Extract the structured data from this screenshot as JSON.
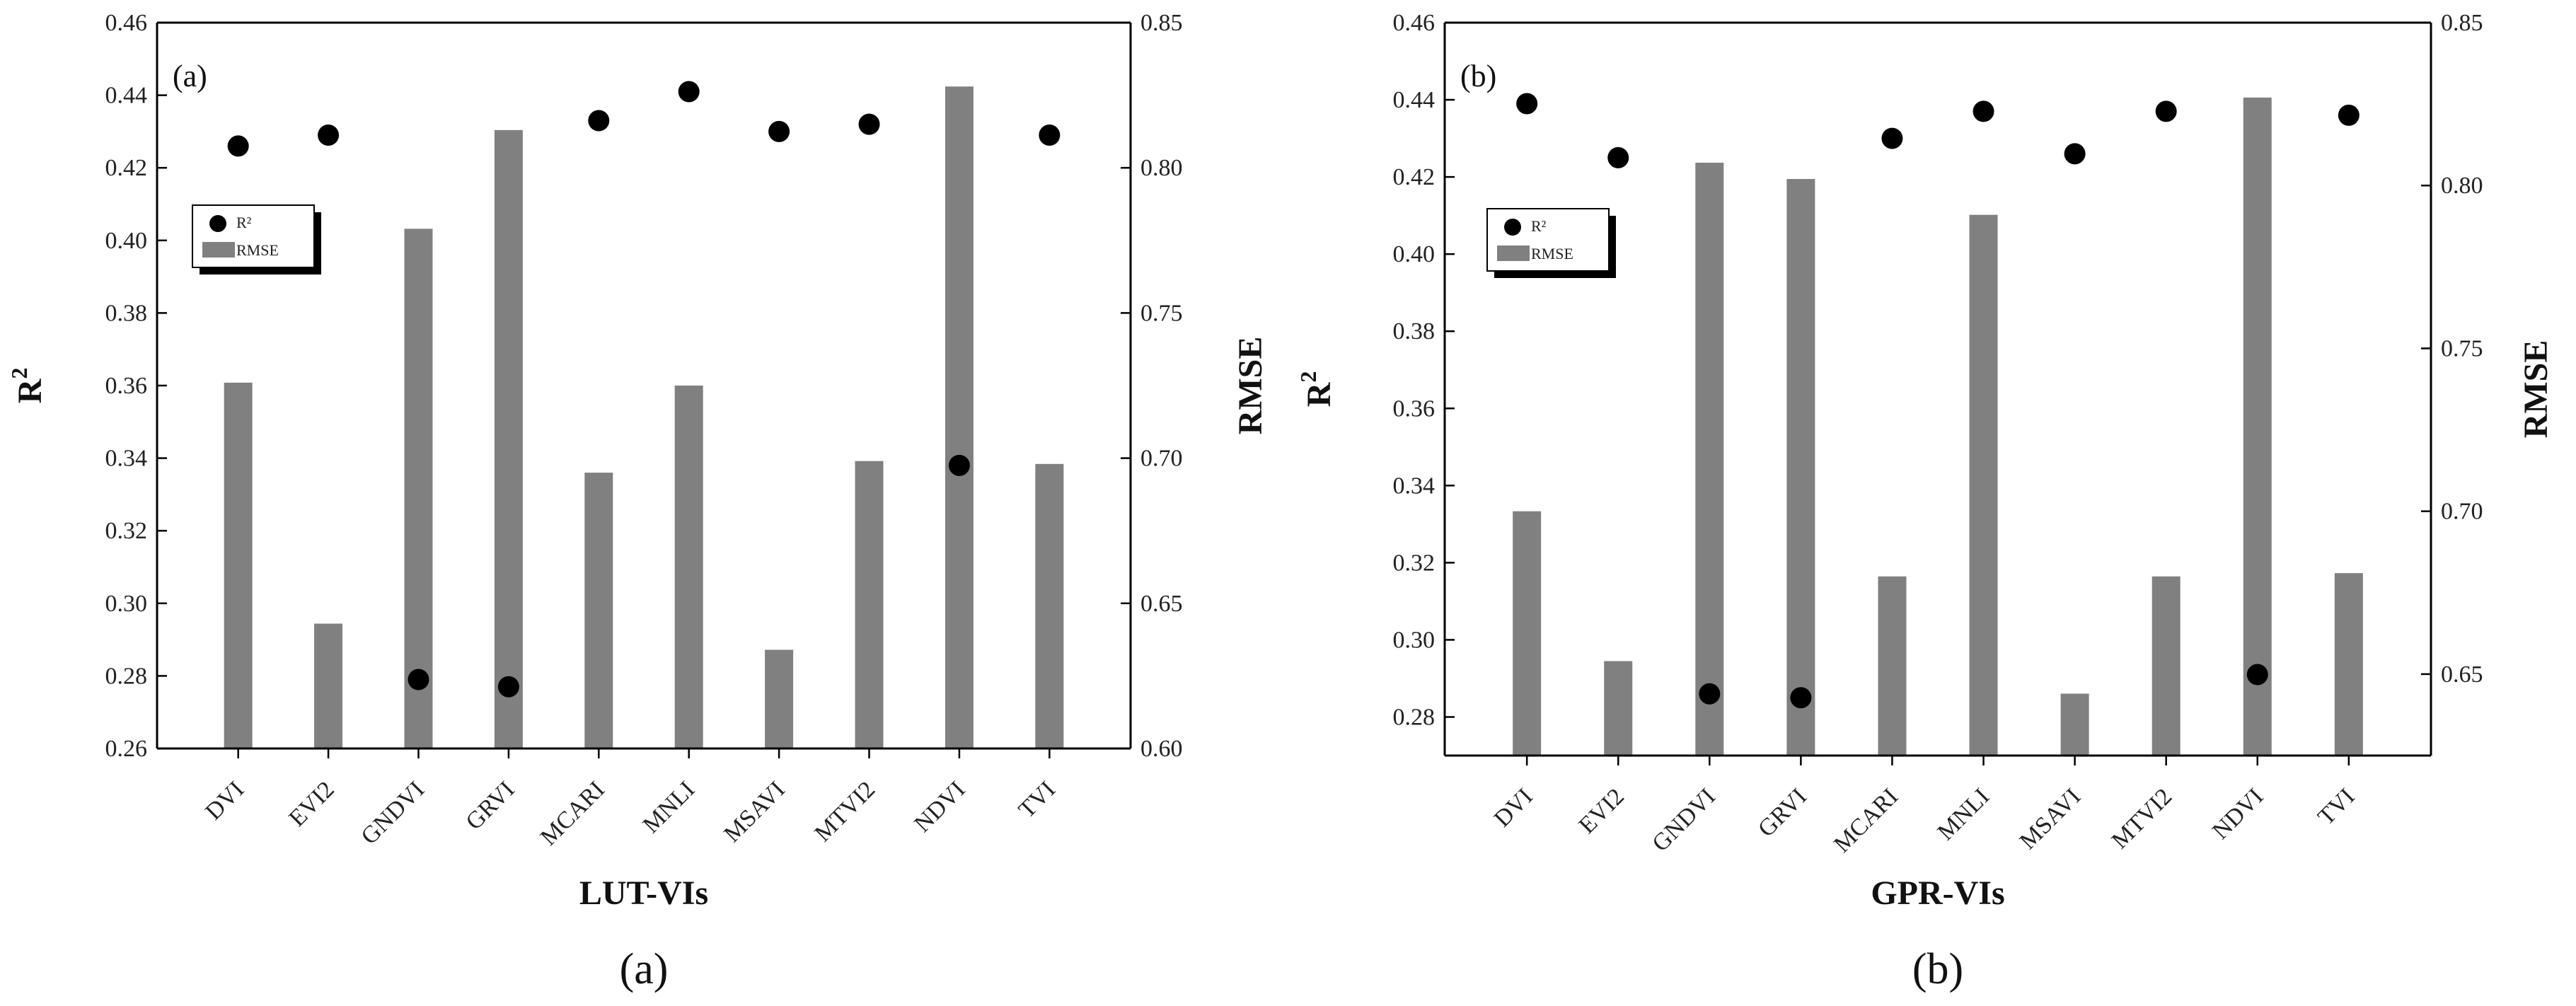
{
  "chart_data": [
    {
      "type": "bar+scatter",
      "panel_label": "(a)",
      "caption": "(a)",
      "xlabel": "LUT-VIs",
      "ylabel_left": "R",
      "ylabel_left_sup": "2",
      "ylabel_right": "RMSE",
      "categories": [
        "DVI",
        "EVI2",
        "GNDVI",
        "GRVI",
        "MCARI",
        "MNLI",
        "MSAVI",
        "MTVI2",
        "NDVI",
        "TVI"
      ],
      "left_ylim": [
        0.26,
        0.46
      ],
      "left_ticks": [
        "0.26",
        "0.28",
        "0.30",
        "0.32",
        "0.34",
        "0.36",
        "0.38",
        "0.40",
        "0.42",
        "0.44",
        "0.46"
      ],
      "right_ylim": [
        0.6,
        0.85
      ],
      "right_ticks": [
        "0.60",
        "0.65",
        "0.70",
        "0.75",
        "0.80",
        "0.85"
      ],
      "legend": [
        "R²",
        "RMSE"
      ],
      "series": [
        {
          "name": "R²",
          "kind": "scatter",
          "axis": "left",
          "values": [
            0.426,
            0.429,
            0.279,
            0.277,
            0.433,
            0.441,
            0.43,
            0.432,
            0.338,
            0.429
          ]
        },
        {
          "name": "RMSE",
          "kind": "bar",
          "axis": "right",
          "values": [
            0.726,
            0.643,
            0.779,
            0.813,
            0.695,
            0.725,
            0.634,
            0.699,
            0.828,
            0.698
          ]
        }
      ],
      "colors": {
        "bar": "#808080",
        "point": "#000000"
      }
    },
    {
      "type": "bar+scatter",
      "panel_label": "(b)",
      "caption": "(b)",
      "xlabel": "GPR-VIs",
      "ylabel_left": "R",
      "ylabel_left_sup": "2",
      "ylabel_right": "RMSE",
      "categories": [
        "DVI",
        "EVI2",
        "GNDVI",
        "GRVI",
        "MCARI",
        "MNLI",
        "MSAVI",
        "MTVI2",
        "NDVI",
        "TVI"
      ],
      "left_ylim": [
        0.27,
        0.46
      ],
      "left_ticks": [
        "0.28",
        "0.30",
        "0.32",
        "0.34",
        "0.36",
        "0.38",
        "0.40",
        "0.42",
        "0.44",
        "0.46"
      ],
      "right_ylim": [
        0.625,
        0.85
      ],
      "right_ticks": [
        "0.65",
        "0.70",
        "0.75",
        "0.80",
        "0.85"
      ],
      "legend": [
        "R²",
        "RMSE"
      ],
      "series": [
        {
          "name": "R²",
          "kind": "scatter",
          "axis": "left",
          "values": [
            0.439,
            0.425,
            0.286,
            0.285,
            0.43,
            0.437,
            0.426,
            0.437,
            0.291,
            0.436
          ]
        },
        {
          "name": "RMSE",
          "kind": "bar",
          "axis": "right",
          "values": [
            0.7,
            0.654,
            0.807,
            0.802,
            0.68,
            0.791,
            0.644,
            0.68,
            0.827,
            0.681
          ]
        }
      ],
      "colors": {
        "bar": "#808080",
        "point": "#000000"
      }
    }
  ]
}
